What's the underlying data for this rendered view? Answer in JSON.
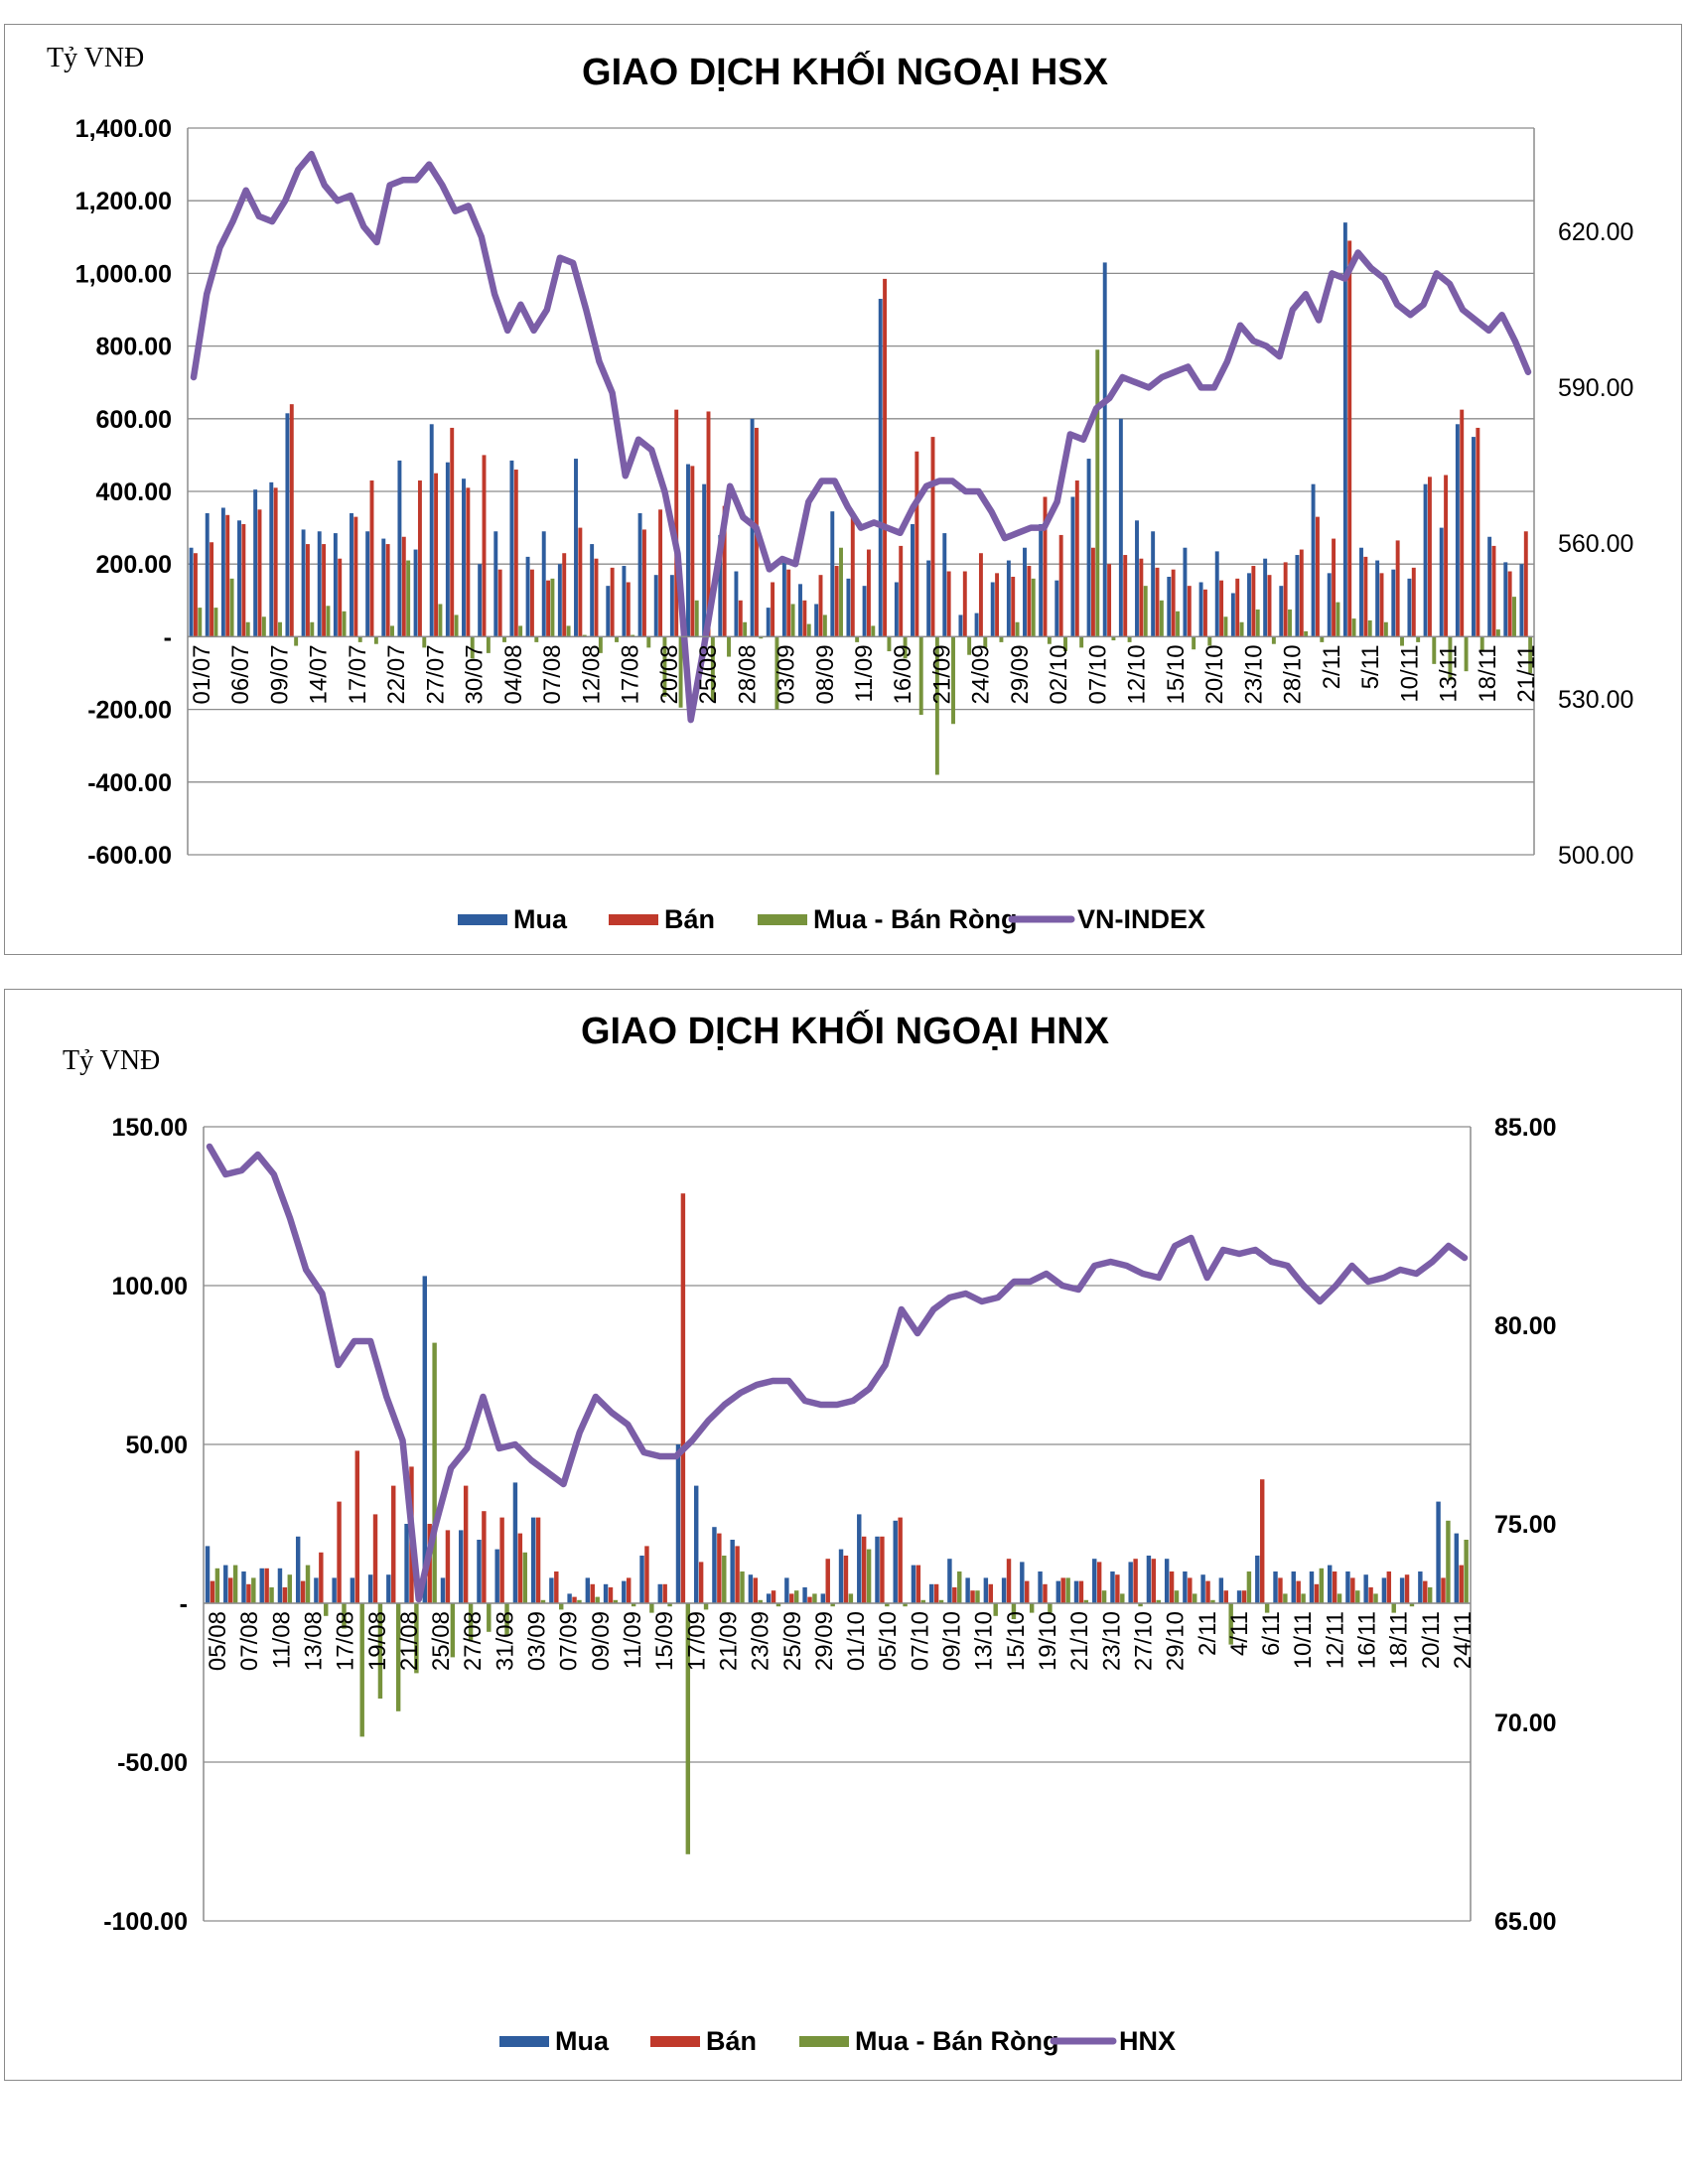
{
  "chart_data": [
    {
      "type": "bar",
      "title": "GIAO DỊCH KHỐI NGOẠI HSX",
      "ylabel": "Tỷ VNĐ",
      "ylim": [
        -600,
        1400
      ],
      "yticks": [
        "1,400.00",
        "1,200.00",
        "1,000.00",
        "800.00",
        "600.00",
        "400.00",
        "200.00",
        "-",
        "-200.00",
        "-400.00",
        "-600.00"
      ],
      "y2lim": [
        500,
        640
      ],
      "y2ticks": [
        "620.00",
        "590.00",
        "560.00",
        "530.00",
        "500.00"
      ],
      "x_tick_labels": [
        "01/07",
        "06/07",
        "09/07",
        "14/07",
        "17/07",
        "22/07",
        "27/07",
        "30/07",
        "04/08",
        "07/08",
        "12/08",
        "17/08",
        "20/08",
        "25/08",
        "28/08",
        "03/09",
        "08/09",
        "11/09",
        "16/09",
        "21/09",
        "24/09",
        "29/09",
        "02/10",
        "07/10",
        "12/10",
        "15/10",
        "20/10",
        "23/10",
        "28/10",
        "2/11",
        "5/11",
        "10/11",
        "13/11",
        "18/11",
        "21/11"
      ],
      "grid": true,
      "legend_position": "bottom",
      "series": [
        {
          "name": "Mua",
          "color": "#2e5d9e",
          "values": [
            245,
            340,
            355,
            320,
            405,
            425,
            615,
            295,
            290,
            285,
            340,
            290,
            270,
            485,
            240,
            585,
            480,
            435,
            200,
            290,
            485,
            220,
            290,
            200,
            490,
            255,
            140,
            195,
            340,
            170,
            170,
            475,
            420,
            280,
            180,
            600,
            80,
            210,
            145,
            90,
            345,
            160,
            140,
            930,
            150,
            310,
            210,
            285,
            60,
            65,
            150,
            210,
            245,
            310,
            155,
            385,
            490,
            1030,
            600,
            320,
            290,
            165,
            245,
            150,
            235,
            120,
            175,
            215,
            140,
            225,
            420,
            175,
            1140,
            245,
            210,
            185,
            160,
            420,
            300,
            585,
            550,
            275,
            205,
            200
          ]
        },
        {
          "name": "Bán",
          "color": "#c0392b",
          "values": [
            230,
            260,
            335,
            310,
            350,
            410,
            640,
            255,
            255,
            215,
            330,
            430,
            255,
            275,
            430,
            450,
            575,
            410,
            500,
            185,
            460,
            185,
            155,
            230,
            300,
            215,
            190,
            150,
            295,
            350,
            625,
            470,
            620,
            360,
            100,
            575,
            150,
            185,
            100,
            170,
            195,
            335,
            240,
            985,
            250,
            510,
            550,
            180,
            180,
            230,
            175,
            165,
            195,
            385,
            280,
            430,
            245,
            200,
            225,
            215,
            190,
            185,
            140,
            130,
            155,
            160,
            195,
            170,
            205,
            240,
            330,
            270,
            1090,
            220,
            175,
            265,
            190,
            440,
            445,
            625,
            575,
            250,
            180,
            290
          ]
        },
        {
          "name": "Mua - Bán Ròng",
          "color": "#77933c",
          "values": [
            80,
            80,
            160,
            40,
            55,
            40,
            -25,
            40,
            85,
            70,
            -15,
            -20,
            30,
            210,
            -30,
            90,
            60,
            -60,
            -45,
            -15,
            30,
            -15,
            160,
            30,
            5,
            -45,
            -15,
            5,
            -30,
            -165,
            -195,
            100,
            -175,
            -55,
            40,
            -5,
            -200,
            90,
            35,
            60,
            245,
            -15,
            30,
            -40,
            -60,
            -215,
            -380,
            -240,
            -50,
            -30,
            -15,
            40,
            160,
            -20,
            -40,
            -30,
            790,
            -10,
            -15,
            140,
            100,
            70,
            -35,
            -25,
            55,
            40,
            75,
            -20,
            75,
            15,
            -15,
            95,
            50,
            45,
            40,
            -25,
            -15,
            -75,
            -120,
            -95,
            -40,
            20,
            110,
            -100
          ]
        },
        {
          "name": "VN-INDEX",
          "color": "#7b5ea7",
          "values": [
            592,
            608,
            617,
            622,
            628,
            623,
            622,
            626,
            632,
            635,
            629,
            626,
            627,
            621,
            618,
            629,
            630,
            630,
            633,
            629,
            624,
            625,
            619,
            608,
            601,
            606,
            601,
            605,
            615,
            614,
            605,
            595,
            589,
            573,
            580,
            578,
            570,
            558,
            526,
            540,
            555,
            571,
            565,
            563,
            555,
            557,
            556,
            568,
            572,
            572,
            567,
            563,
            564,
            563,
            562,
            567,
            571,
            572,
            572,
            570,
            570,
            566,
            561,
            562,
            563,
            563,
            568,
            581,
            580,
            586,
            588,
            592,
            591,
            590,
            592,
            593,
            594,
            590,
            590,
            595,
            602,
            599,
            598,
            596,
            605,
            608,
            603,
            612,
            611,
            616,
            613,
            611,
            606,
            604,
            606,
            612,
            610,
            605,
            603,
            601,
            604,
            599,
            593
          ]
        }
      ]
    },
    {
      "type": "bar",
      "title": "GIAO DỊCH KHỐI NGOẠI HNX",
      "ylabel": "Tỷ VNĐ",
      "ylim": [
        -100,
        150
      ],
      "yticks": [
        "150.00",
        "100.00",
        "50.00",
        "-",
        "-50.00",
        "-100.00"
      ],
      "y2lim": [
        65,
        85
      ],
      "y2ticks": [
        "85.00",
        "80.00",
        "75.00",
        "70.00",
        "65.00"
      ],
      "x_tick_labels": [
        "05/08",
        "07/08",
        "11/08",
        "13/08",
        "17/08",
        "19/08",
        "21/08",
        "25/08",
        "27/08",
        "31/08",
        "03/09",
        "07/09",
        "09/09",
        "11/09",
        "15/09",
        "17/09",
        "21/09",
        "23/09",
        "25/09",
        "29/09",
        "01/10",
        "05/10",
        "07/10",
        "09/10",
        "13/10",
        "15/10",
        "19/10",
        "21/10",
        "23/10",
        "27/10",
        "29/10",
        "2/11",
        "4/11",
        "6/11",
        "10/11",
        "12/11",
        "16/11",
        "18/11",
        "20/11",
        "24/11"
      ],
      "grid": true,
      "legend_position": "bottom",
      "series": [
        {
          "name": "Mua",
          "color": "#2e5d9e",
          "values": [
            18,
            12,
            10,
            11,
            11,
            21,
            8,
            8,
            8,
            9,
            9,
            25,
            103,
            8,
            23,
            20,
            17,
            38,
            27,
            8,
            3,
            8,
            6,
            7,
            15,
            6,
            50,
            37,
            24,
            20,
            9,
            3,
            8,
            5,
            3,
            17,
            28,
            21,
            26,
            12,
            6,
            14,
            8,
            8,
            8,
            13,
            10,
            7,
            7,
            14,
            10,
            13,
            15,
            14,
            10,
            9,
            8,
            4,
            15,
            10,
            10,
            10,
            12,
            10,
            9,
            8,
            8,
            10,
            32,
            22
          ]
        },
        {
          "name": "Bán",
          "color": "#c0392b",
          "values": [
            7,
            8,
            6,
            11,
            5,
            7,
            16,
            32,
            48,
            28,
            37,
            43,
            25,
            23,
            37,
            29,
            27,
            22,
            27,
            10,
            2,
            6,
            5,
            8,
            18,
            6,
            129,
            13,
            22,
            18,
            8,
            4,
            3,
            2,
            14,
            15,
            21,
            21,
            27,
            12,
            6,
            5,
            4,
            6,
            14,
            7,
            6,
            8,
            7,
            13,
            9,
            14,
            14,
            10,
            8,
            7,
            4,
            4,
            39,
            8,
            7,
            6,
            10,
            8,
            5,
            10,
            9,
            7,
            8,
            12
          ]
        },
        {
          "name": "Mua - Bán Ròng",
          "color": "#77933c",
          "values": [
            11,
            12,
            8,
            5,
            9,
            12,
            -4,
            -8,
            -42,
            -30,
            -34,
            -22,
            82,
            -17,
            -12,
            -9,
            -10,
            16,
            1,
            -2,
            1,
            2,
            1,
            -1,
            -3,
            -1,
            -79,
            -2,
            15,
            10,
            1,
            -1,
            4,
            3,
            -1,
            3,
            17,
            -1,
            -1,
            1,
            1,
            10,
            4,
            -4,
            -5,
            -3,
            -3,
            8,
            1,
            4,
            3,
            -1,
            1,
            4,
            3,
            1,
            -13,
            10,
            -3,
            3,
            3,
            11,
            3,
            4,
            3,
            -3,
            -1,
            5,
            26,
            20
          ]
        },
        {
          "name": "HNX",
          "color": "#7b5ea7",
          "values": [
            84.5,
            83.8,
            83.9,
            84.3,
            83.8,
            82.7,
            81.4,
            80.8,
            79.0,
            79.6,
            79.6,
            78.2,
            77.1,
            73.1,
            74.9,
            76.4,
            76.9,
            78.2,
            76.9,
            77.0,
            76.6,
            76.3,
            76.0,
            77.3,
            78.2,
            77.8,
            77.5,
            76.8,
            76.7,
            76.7,
            77.1,
            77.6,
            78.0,
            78.3,
            78.5,
            78.6,
            78.6,
            78.1,
            78.0,
            78.0,
            78.1,
            78.4,
            79.0,
            80.4,
            79.8,
            80.4,
            80.7,
            80.8,
            80.6,
            80.7,
            81.1,
            81.1,
            81.3,
            81.0,
            80.9,
            81.5,
            81.6,
            81.5,
            81.3,
            81.2,
            82.0,
            82.2,
            81.2,
            81.9,
            81.8,
            81.9,
            81.6,
            81.5,
            81.0,
            80.6,
            81.0,
            81.5,
            81.1,
            81.2,
            81.4,
            81.3,
            81.6,
            82.0,
            81.7
          ]
        }
      ]
    }
  ]
}
